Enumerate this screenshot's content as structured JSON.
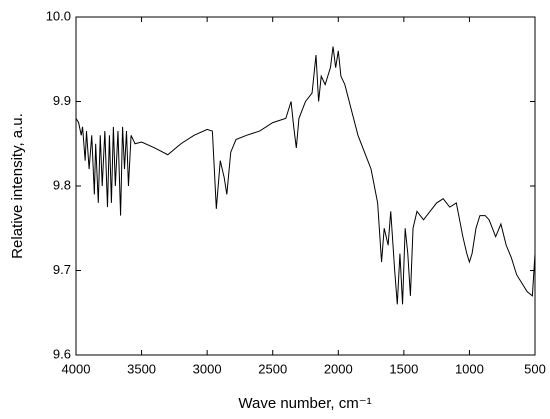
{
  "chart_data": {
    "type": "line",
    "xlabel": "Wave number, cm⁻¹",
    "ylabel": "Relative intensity, a.u.",
    "color": "#000000",
    "xlim": [
      4000,
      500
    ],
    "xticks": [
      4000,
      3500,
      3000,
      2500,
      2000,
      1500,
      1000,
      500
    ],
    "ylim": [
      9.6,
      10
    ],
    "yticks": [
      9.6,
      9.7,
      9.8,
      9.9,
      {
        "value": 10,
        "label": "10.0"
      }
    ],
    "x": [
      4000,
      3980,
      3960,
      3950,
      3930,
      3920,
      3900,
      3880,
      3860,
      3850,
      3830,
      3815,
      3800,
      3780,
      3760,
      3745,
      3730,
      3715,
      3700,
      3680,
      3660,
      3645,
      3630,
      3615,
      3600,
      3580,
      3550,
      3500,
      3400,
      3300,
      3200,
      3100,
      3000,
      2960,
      2930,
      2900,
      2870,
      2850,
      2820,
      2780,
      2700,
      2600,
      2500,
      2400,
      2360,
      2340,
      2320,
      2300,
      2250,
      2200,
      2170,
      2150,
      2130,
      2100,
      2080,
      2060,
      2040,
      2020,
      2000,
      1980,
      1950,
      1900,
      1850,
      1800,
      1750,
      1700,
      1670,
      1650,
      1620,
      1600,
      1570,
      1550,
      1530,
      1510,
      1490,
      1470,
      1450,
      1430,
      1400,
      1350,
      1300,
      1250,
      1200,
      1150,
      1100,
      1050,
      1020,
      1000,
      980,
      950,
      920,
      880,
      850,
      800,
      760,
      720,
      680,
      640,
      600,
      560,
      520,
      500
    ],
    "values": [
      9.88,
      9.875,
      9.86,
      9.87,
      9.83,
      9.865,
      9.82,
      9.86,
      9.79,
      9.85,
      9.78,
      9.86,
      9.8,
      9.865,
      9.775,
      9.86,
      9.78,
      9.87,
      9.8,
      9.865,
      9.765,
      9.87,
      9.82,
      9.865,
      9.8,
      9.86,
      9.85,
      9.852,
      9.845,
      9.837,
      9.85,
      9.86,
      9.867,
      9.865,
      9.773,
      9.83,
      9.81,
      9.79,
      9.84,
      9.855,
      9.86,
      9.865,
      9.875,
      9.88,
      9.9,
      9.87,
      9.845,
      9.88,
      9.9,
      9.91,
      9.955,
      9.9,
      9.93,
      9.92,
      9.93,
      9.94,
      9.965,
      9.94,
      9.96,
      9.93,
      9.92,
      9.89,
      9.86,
      9.84,
      9.82,
      9.78,
      9.71,
      9.75,
      9.73,
      9.77,
      9.7,
      9.66,
      9.72,
      9.66,
      9.75,
      9.72,
      9.67,
      9.75,
      9.77,
      9.76,
      9.77,
      9.78,
      9.785,
      9.775,
      9.78,
      9.74,
      9.72,
      9.71,
      9.72,
      9.75,
      9.765,
      9.765,
      9.76,
      9.74,
      9.755,
      9.73,
      9.715,
      9.695,
      9.685,
      9.675,
      9.67,
      9.72
    ]
  }
}
